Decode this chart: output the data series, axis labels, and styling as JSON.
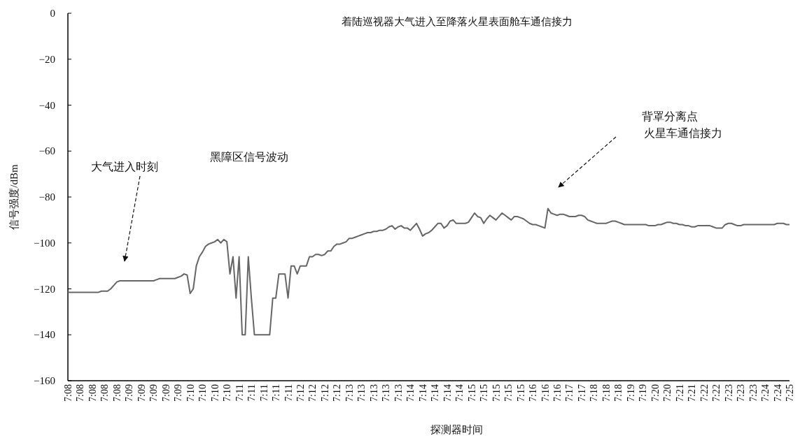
{
  "chart_data": {
    "type": "line",
    "title": "着陆巡视器大气进入至降落火星表面舱车通信接力",
    "xlabel": "探测器时间",
    "ylabel": "信号强度/dBm",
    "ylim": [
      -160,
      0
    ],
    "yticks": [
      0,
      -20,
      -40,
      -60,
      -80,
      -100,
      -120,
      -140,
      -160
    ],
    "categories": [
      "7:08",
      null,
      null,
      null,
      "7:08",
      null,
      null,
      null,
      "7:08",
      null,
      null,
      null,
      "7:08",
      null,
      null,
      null,
      "7:08",
      null,
      null,
      null,
      "7:09",
      null,
      null,
      null,
      "7:09",
      null,
      null,
      null,
      "7:09",
      null,
      null,
      null,
      "7:09",
      null,
      null,
      null,
      "7:09",
      null,
      null,
      null,
      "7:10",
      null,
      null,
      null,
      "7:10",
      null,
      null,
      null,
      "7:10",
      null,
      null,
      null,
      "7:10",
      null,
      null,
      null,
      "7:11",
      null,
      null,
      null,
      "7:11",
      null,
      null,
      null,
      "7:11",
      null,
      null,
      null,
      "7:11",
      null,
      null,
      null,
      "7:11",
      null,
      null,
      null,
      "7:12",
      null,
      null,
      null,
      "7:12",
      null,
      null,
      null,
      "7:12",
      null,
      null,
      null,
      "7:12",
      null,
      null,
      null,
      "7:13",
      null,
      null,
      null,
      "7:13",
      null,
      null,
      null,
      "7:13",
      null,
      null,
      null,
      "7:13",
      null,
      null,
      null,
      "7:13",
      null,
      null,
      null,
      "7:14",
      null,
      null,
      null,
      "7:14",
      null,
      null,
      null,
      "7:14",
      null,
      null,
      null,
      "7:14",
      null,
      null,
      null,
      "7:14",
      null,
      null,
      null,
      "7:15",
      null,
      null,
      null,
      "7:15",
      null,
      null,
      null,
      "7:15",
      null,
      null,
      null,
      "7:15",
      null,
      null,
      null,
      "7:15",
      null,
      null,
      null,
      "7:16",
      null,
      null,
      null,
      "7:16",
      null,
      null,
      null,
      "7:16",
      null,
      null,
      null,
      "7:17",
      null,
      null,
      null,
      "7:17",
      null,
      null,
      null,
      "7:18",
      null,
      null,
      null,
      "7:18",
      null,
      null,
      null,
      "7:18",
      null,
      null,
      null,
      "7:19",
      null,
      null,
      null,
      "7:19",
      null,
      null,
      null,
      "7:20",
      null,
      null,
      null,
      "7:20",
      null,
      null,
      null,
      "7:21",
      null,
      null,
      null,
      "7:21",
      null,
      null,
      null,
      "7:22",
      null,
      null,
      null,
      "7:22",
      null,
      null,
      null,
      "7:23",
      null,
      null,
      null,
      "7:23",
      null,
      null,
      null,
      "7:23",
      null,
      null,
      null,
      "7:24",
      null,
      null,
      null,
      "7:24",
      null,
      null,
      null,
      "7:25"
    ],
    "annotations": [
      "大气进入时刻",
      "黑障区信号波动",
      "背罩分离点",
      "火星车通信接力"
    ],
    "series": [
      {
        "color": "#666666",
        "values": [
          -121.5,
          -121.5,
          -121.5,
          -121.5,
          -121.5,
          -121.5,
          -121.5,
          -121.5,
          -121.5,
          -121.5,
          -121.5,
          -121,
          -121,
          -121,
          -120,
          -118.5,
          -117,
          -116.5,
          -116.5,
          -116.5,
          -116.5,
          -116.5,
          -116.5,
          -116.5,
          -116.5,
          -116.5,
          -116.5,
          -116.5,
          -116.5,
          -116,
          -115.5,
          -115.5,
          -115.5,
          -115.5,
          -115.5,
          -115.5,
          -115,
          -114.5,
          -113.5,
          -114,
          -122,
          -120,
          -110,
          -106,
          -104,
          -101.5,
          -100.5,
          -100,
          -99.5,
          -98.5,
          -100,
          -98.5,
          -99.5,
          -113.5,
          -106,
          -124,
          -106,
          -140,
          -140,
          -106,
          -124,
          -140,
          -140,
          -140,
          -140,
          -140,
          -140,
          -124,
          -124,
          -113.5,
          -113.5,
          -113.5,
          -124,
          -110,
          -110,
          -113.5,
          -110,
          -110,
          -110,
          -106,
          -106,
          -105,
          -105,
          -105.5,
          -105,
          -103.5,
          -103.5,
          -101.5,
          -100.5,
          -100.5,
          -100,
          -99.5,
          -98,
          -98,
          -97.5,
          -97,
          -96.5,
          -96,
          -95.5,
          -95.5,
          -95,
          -95,
          -94.5,
          -94.5,
          -94,
          -93,
          -92.5,
          -94,
          -93,
          -92.5,
          -93.5,
          -93.5,
          -94.5,
          -93,
          -91.5,
          -94,
          -97,
          -96,
          -95.5,
          -94.5,
          -93,
          -91.5,
          -91.5,
          -93.5,
          -92.5,
          -90.5,
          -90,
          -91.5,
          -91.5,
          -91.5,
          -91.5,
          -91,
          -89,
          -87,
          -88.5,
          -89,
          -91.5,
          -89.5,
          -88,
          -89,
          -90,
          -88.5,
          -87,
          -88,
          -89,
          -90,
          -88.5,
          -88.5,
          -89,
          -89.5,
          -90.5,
          -91.5,
          -92,
          -92,
          -92.5,
          -93,
          -93.5,
          -85,
          -87,
          -87.5,
          -88,
          -87.5,
          -87.5,
          -88,
          -88.5,
          -88.5,
          -88.5,
          -88,
          -88,
          -88.5,
          -90,
          -90.5,
          -91,
          -91.5,
          -91.5,
          -91.5,
          -91.5,
          -91,
          -90.5,
          -90.5,
          -91,
          -91.5,
          -92,
          -92,
          -92,
          -92,
          -92,
          -92,
          -92,
          -92,
          -92.5,
          -92.5,
          -92.5,
          -92,
          -92,
          -91.5,
          -91,
          -91,
          -91.5,
          -91.5,
          -92,
          -92,
          -92.5,
          -92.5,
          -93,
          -93,
          -92.5,
          -92.5,
          -92.5,
          -92.5,
          -92.5,
          -93,
          -93.5,
          -93.5,
          -93.5,
          -92,
          -91.5,
          -91.5,
          -92,
          -92.5,
          -92.5,
          -92,
          -92,
          -92,
          -92,
          -92,
          -92,
          -92,
          -92,
          -92,
          -92,
          -92,
          -91.5,
          -91.5,
          -91.5,
          -92,
          -92
        ]
      }
    ]
  }
}
